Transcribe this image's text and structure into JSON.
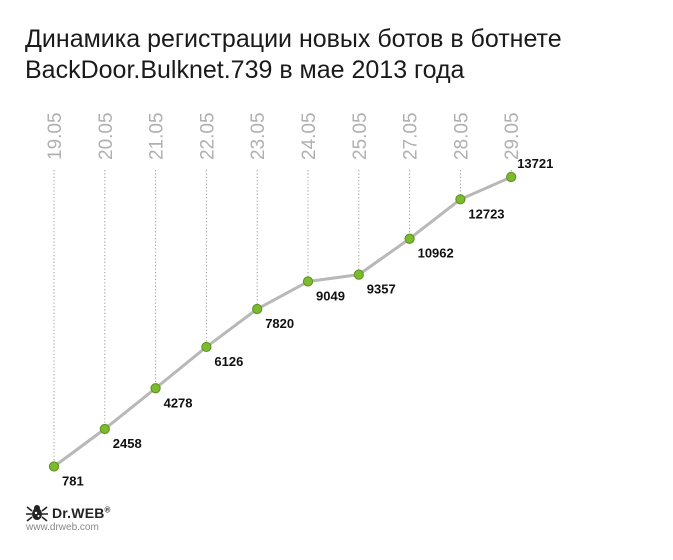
{
  "title_lines": [
    "Динамика регистрации новых ботов в ботнете",
    "BackDoor.Bulknet.739 в мае 2013 года"
  ],
  "brand": {
    "name": "Dr.WEB",
    "mark": "®",
    "url": "www.drweb.com"
  },
  "colors": {
    "line": "#b8b8b8",
    "point": "#7dbb2e",
    "point_stroke": "#5a8f1c",
    "guide": "#999999",
    "tick_label": "#b0b0b0",
    "value_label": "#111111"
  },
  "chart_data": {
    "type": "line",
    "title": "Динамика регистрации новых ботов в ботнете BackDoor.Bulknet.739 в мае 2013 года",
    "categories": [
      "19.05",
      "20.05",
      "21.05",
      "22.05",
      "23.05",
      "24.05",
      "25.05",
      "27.05",
      "28.05",
      "29.05"
    ],
    "values": [
      781,
      2458,
      4278,
      6126,
      7820,
      9049,
      9357,
      10962,
      12723,
      13721
    ],
    "value_labels": [
      "781",
      "2458",
      "4278",
      "6126",
      "7820",
      "9049",
      "9357",
      "10962",
      "12723",
      "13721"
    ],
    "tick_label_position": "top",
    "grid": false
  }
}
